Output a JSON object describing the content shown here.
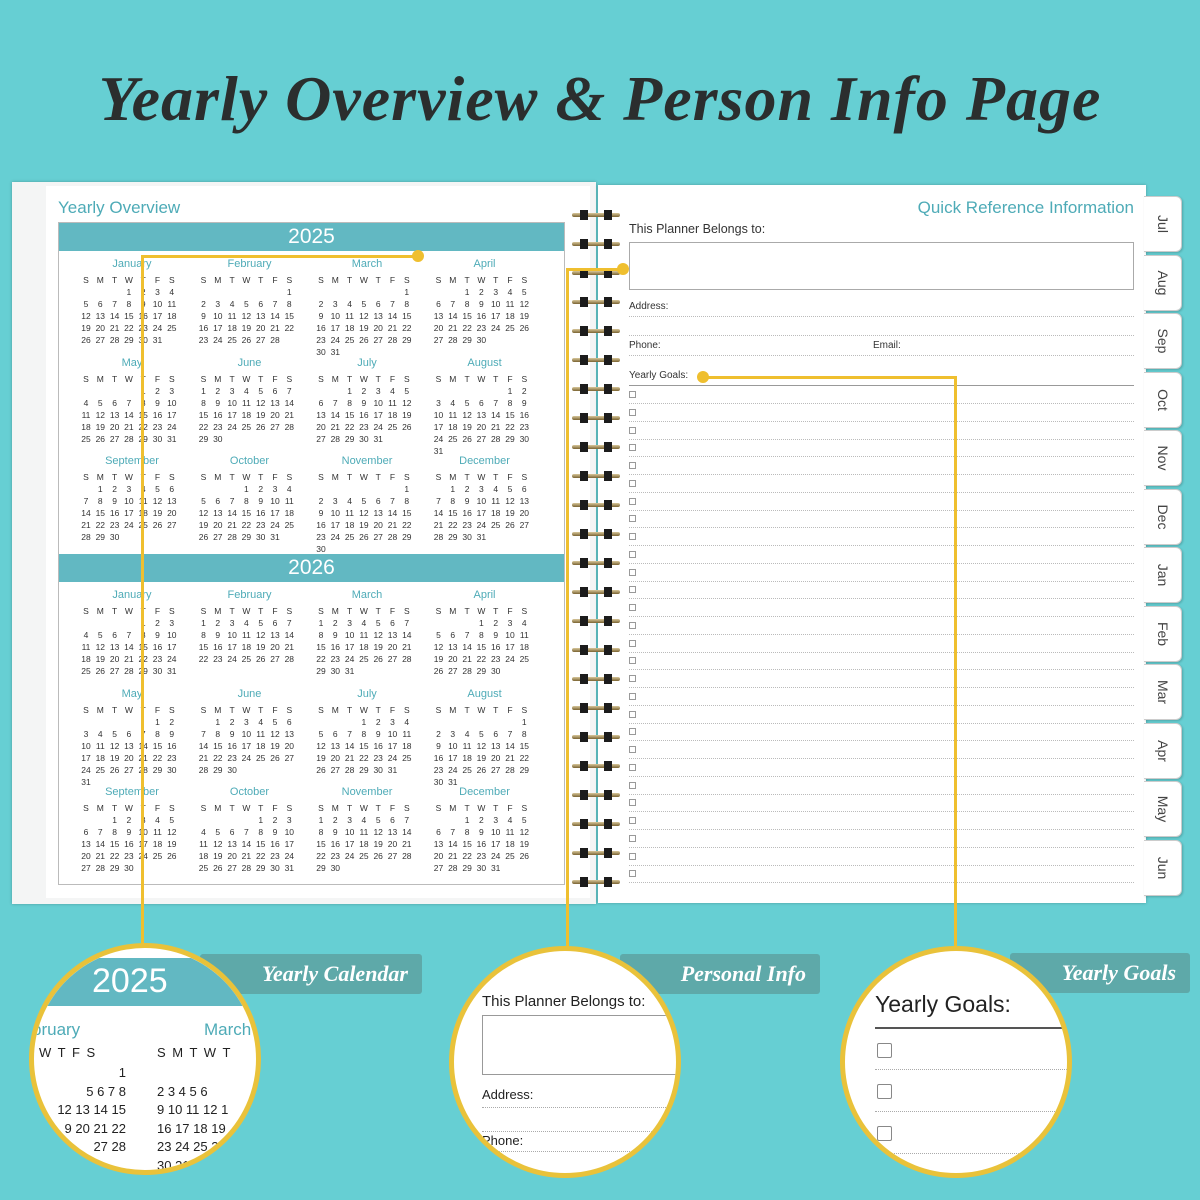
{
  "title": "Yearly Overview & Person Info Page",
  "left_page": {
    "heading": "Yearly Overview",
    "weekdays": [
      "S",
      "M",
      "T",
      "W",
      "T",
      "F",
      "S"
    ],
    "years": [
      {
        "year": "2025",
        "months": [
          {
            "name": "January",
            "first_weekday": 3,
            "days": 31
          },
          {
            "name": "February",
            "first_weekday": 6,
            "days": 28
          },
          {
            "name": "March",
            "first_weekday": 6,
            "days": 31
          },
          {
            "name": "April",
            "first_weekday": 2,
            "days": 30
          },
          {
            "name": "May",
            "first_weekday": 4,
            "days": 31
          },
          {
            "name": "June",
            "first_weekday": 0,
            "days": 30
          },
          {
            "name": "July",
            "first_weekday": 2,
            "days": 31
          },
          {
            "name": "August",
            "first_weekday": 5,
            "days": 31
          },
          {
            "name": "September",
            "first_weekday": 1,
            "days": 30
          },
          {
            "name": "October",
            "first_weekday": 3,
            "days": 31
          },
          {
            "name": "November",
            "first_weekday": 6,
            "days": 30
          },
          {
            "name": "December",
            "first_weekday": 1,
            "days": 31
          }
        ]
      },
      {
        "year": "2026",
        "months": [
          {
            "name": "January",
            "first_weekday": 4,
            "days": 31
          },
          {
            "name": "February",
            "first_weekday": 0,
            "days": 28
          },
          {
            "name": "March",
            "first_weekday": 0,
            "days": 31
          },
          {
            "name": "April",
            "first_weekday": 3,
            "days": 30
          },
          {
            "name": "May",
            "first_weekday": 5,
            "days": 31
          },
          {
            "name": "June",
            "first_weekday": 1,
            "days": 30
          },
          {
            "name": "July",
            "first_weekday": 3,
            "days": 31
          },
          {
            "name": "August",
            "first_weekday": 6,
            "days": 31
          },
          {
            "name": "September",
            "first_weekday": 2,
            "days": 30
          },
          {
            "name": "October",
            "first_weekday": 4,
            "days": 31
          },
          {
            "name": "November",
            "first_weekday": 0,
            "days": 30
          },
          {
            "name": "December",
            "first_weekday": 2,
            "days": 31
          }
        ]
      }
    ]
  },
  "right_page": {
    "heading": "Quick Reference Information",
    "belongs_to": "This Planner Belongs to:",
    "address": "Address:",
    "phone": "Phone:",
    "email": "Email:",
    "goals": "Yearly Goals:",
    "goal_checkbox_count": 28
  },
  "tabs": [
    "Jul",
    "Aug",
    "Sep",
    "Oct",
    "Nov",
    "Dec",
    "Jan",
    "Feb",
    "Mar",
    "Apr",
    "May",
    "Jun"
  ],
  "callouts": [
    {
      "label": "Yearly Calendar",
      "year": "2025",
      "months": [
        "bruary",
        "March"
      ],
      "weekdays_a": "W T F S",
      "weekdays_b": "S M T W T",
      "rows_a": [
        "1",
        "5 6 7 8",
        "12 13 14 15",
        "9 20 21 22",
        "27 28"
      ],
      "rows_b": [
        "",
        "2 3 4 5 6",
        "9 10 11 12 1",
        "16 17 18 19",
        "23 24 25 2",
        "30 31"
      ]
    },
    {
      "label": "Personal Info",
      "belongs_to": "This Planner Belongs to:",
      "address": "Address:",
      "phone": "Phone:"
    },
    {
      "label": "Yearly Goals",
      "goals": "Yearly Goals:"
    }
  ],
  "colors": {
    "background": "#66cfd3",
    "accent": "#62b8c2",
    "callout_line": "#efbf2f"
  }
}
